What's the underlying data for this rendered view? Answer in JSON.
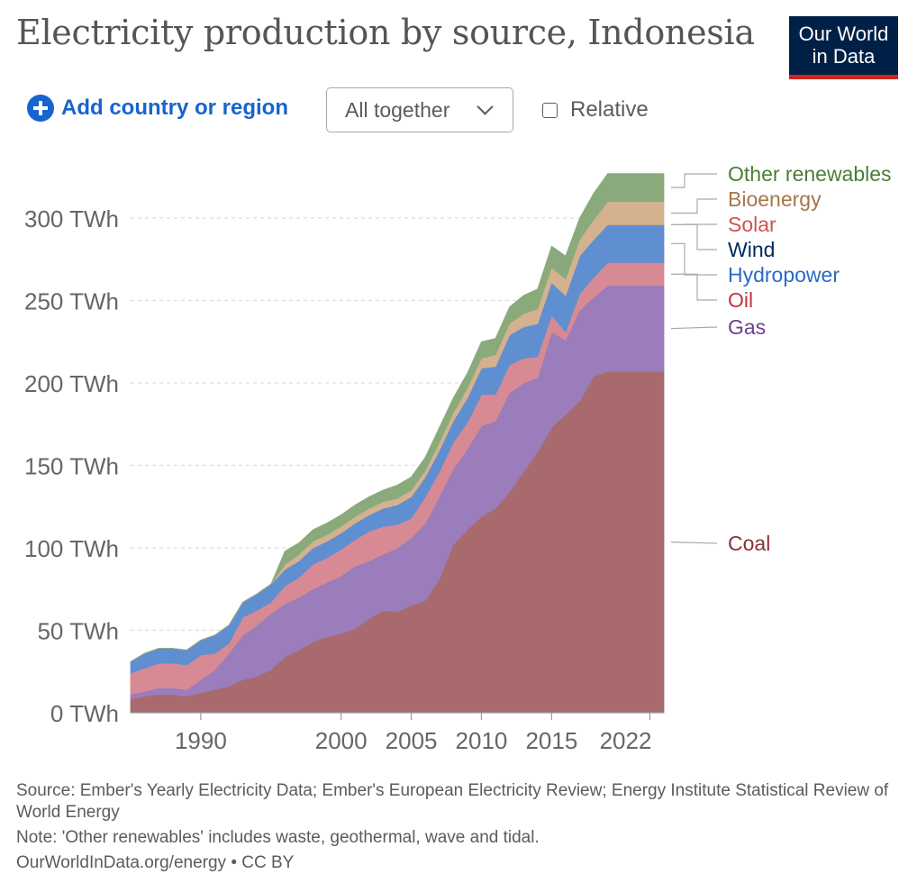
{
  "header": {
    "title": "Electricity production by source, Indonesia",
    "logo_line1": "Our World",
    "logo_line2": "in Data"
  },
  "controls": {
    "add_label": "Add country or region",
    "dropdown_value": "All together",
    "relative_label": "Relative"
  },
  "colors": {
    "coal": "#a86a6d",
    "gas": "#9a7dba",
    "oil": "#d78a93",
    "hydropower": "#5f8fd1",
    "wind": "#4c5b77",
    "solar": "#dd8f83",
    "bioenergy": "#d4b28f",
    "other_renewables": "#8aaa7b",
    "label_coal": "#8d2f33",
    "label_gas": "#6d3e91",
    "label_oil": "#c1343f",
    "label_hydropower": "#2c6ac4",
    "label_wind": "#00295b",
    "label_solar": "#d0534e",
    "label_bioenergy": "#a5764a",
    "label_other_renewables": "#4b7d36"
  },
  "chart_data": {
    "type": "area",
    "stacked": true,
    "title": "Electricity production by source, Indonesia",
    "xlabel": "",
    "ylabel": "",
    "xlim": [
      1985,
      2023
    ],
    "ylim": [
      0,
      330
    ],
    "y_ticks": [
      0,
      50,
      100,
      150,
      200,
      250,
      300
    ],
    "y_tick_labels": [
      "0 TWh",
      "50 TWh",
      "100 TWh",
      "150 TWh",
      "200 TWh",
      "250 TWh",
      "300 TWh"
    ],
    "x_ticks": [
      1990,
      2000,
      2005,
      2010,
      2015,
      2022
    ],
    "x_tick_labels": [
      "1990",
      "2000",
      "2005",
      "2010",
      "2015",
      "2022"
    ],
    "grid": true,
    "x": [
      1985,
      1986,
      1987,
      1988,
      1989,
      1990,
      1991,
      1992,
      1993,
      1994,
      1995,
      1996,
      1997,
      1998,
      1999,
      2000,
      2001,
      2002,
      2003,
      2004,
      2005,
      2006,
      2007,
      2008,
      2009,
      2010,
      2011,
      2012,
      2013,
      2014,
      2015,
      2016,
      2017,
      2018,
      2019,
      2020,
      2021,
      2022,
      2023
    ],
    "series": [
      {
        "name": "Coal",
        "values": [
          8,
          10,
          11,
          11,
          10,
          12,
          14,
          16,
          20,
          22,
          26,
          34,
          38,
          43,
          46,
          48,
          51,
          57,
          62,
          61,
          65,
          68,
          81,
          102,
          111,
          119,
          124,
          134,
          146,
          158,
          173,
          181,
          189,
          204,
          207,
          207,
          207,
          207,
          207
        ]
      },
      {
        "name": "Gas",
        "values": [
          3,
          3,
          4,
          4,
          4,
          8,
          12,
          20,
          27,
          31,
          34,
          32,
          32,
          32,
          33,
          35,
          38,
          35,
          34,
          39,
          41,
          47,
          50,
          46,
          49,
          55,
          53,
          60,
          54,
          45,
          58,
          45,
          55,
          48,
          52,
          52,
          52,
          52,
          52
        ]
      },
      {
        "name": "Oil",
        "values": [
          13,
          14,
          15,
          15,
          15,
          15,
          10,
          6,
          11,
          9,
          7,
          11,
          12,
          15,
          15,
          16,
          16,
          18,
          17,
          14,
          12,
          16,
          15,
          16,
          16,
          19,
          16,
          17,
          15,
          13,
          10,
          5,
          10,
          12,
          14,
          14,
          14,
          14,
          14
        ]
      },
      {
        "name": "Hydropower",
        "values": [
          7,
          9,
          9,
          9,
          9,
          9,
          11,
          11,
          9,
          10,
          11,
          10,
          10,
          10,
          10,
          10,
          10,
          10,
          11,
          12,
          13,
          12,
          13,
          13,
          15,
          16,
          17,
          18,
          19,
          20,
          20,
          22,
          23,
          23,
          23,
          23,
          23,
          23,
          23
        ]
      },
      {
        "name": "Wind",
        "values": [
          0,
          0,
          0,
          0,
          0,
          0,
          0,
          0,
          0,
          0,
          0,
          0,
          0,
          0,
          0,
          0,
          0,
          0,
          0,
          0,
          0,
          0,
          0,
          0,
          0,
          0,
          0,
          0,
          0,
          0,
          0,
          0,
          0,
          0,
          0,
          0,
          0,
          0,
          0
        ]
      },
      {
        "name": "Solar",
        "values": [
          0,
          0,
          0,
          0,
          0,
          0,
          0,
          0,
          0,
          0,
          0,
          0,
          0,
          0,
          0,
          0,
          0,
          0,
          0,
          0,
          0,
          0,
          0,
          0,
          0,
          0,
          0,
          0,
          0,
          0,
          0,
          0,
          0,
          0,
          0,
          0,
          0,
          0,
          0
        ]
      },
      {
        "name": "Bioenergy",
        "values": [
          0,
          0,
          0,
          0,
          0,
          0,
          0,
          0,
          0,
          0,
          0,
          3,
          4,
          4,
          4,
          4,
          4,
          4,
          4,
          4,
          4,
          4,
          5,
          5,
          6,
          6,
          7,
          7,
          8,
          9,
          9,
          10,
          10,
          12,
          14,
          14,
          14,
          14,
          14
        ]
      },
      {
        "name": "Other renewables",
        "values": [
          0,
          0,
          0,
          0,
          0,
          0,
          0,
          0,
          0,
          0,
          0,
          8,
          7,
          7,
          7,
          7,
          7,
          7,
          7,
          8,
          8,
          8,
          9,
          9,
          9,
          10,
          10,
          10,
          11,
          12,
          13,
          14,
          13,
          16,
          17,
          17,
          17,
          17,
          17
        ]
      }
    ],
    "legend_order": [
      "Other renewables",
      "Bioenergy",
      "Solar",
      "Wind",
      "Hydropower",
      "Oil",
      "Gas",
      "Coal"
    ]
  },
  "footer": {
    "source": "Source: Ember's Yearly Electricity Data; Ember's European Electricity Review; Energy Institute Statistical Review of World Energy",
    "note": "Note: 'Other renewables' includes waste, geothermal, wave and tidal.",
    "credit": "OurWorldInData.org/energy • CC BY"
  }
}
